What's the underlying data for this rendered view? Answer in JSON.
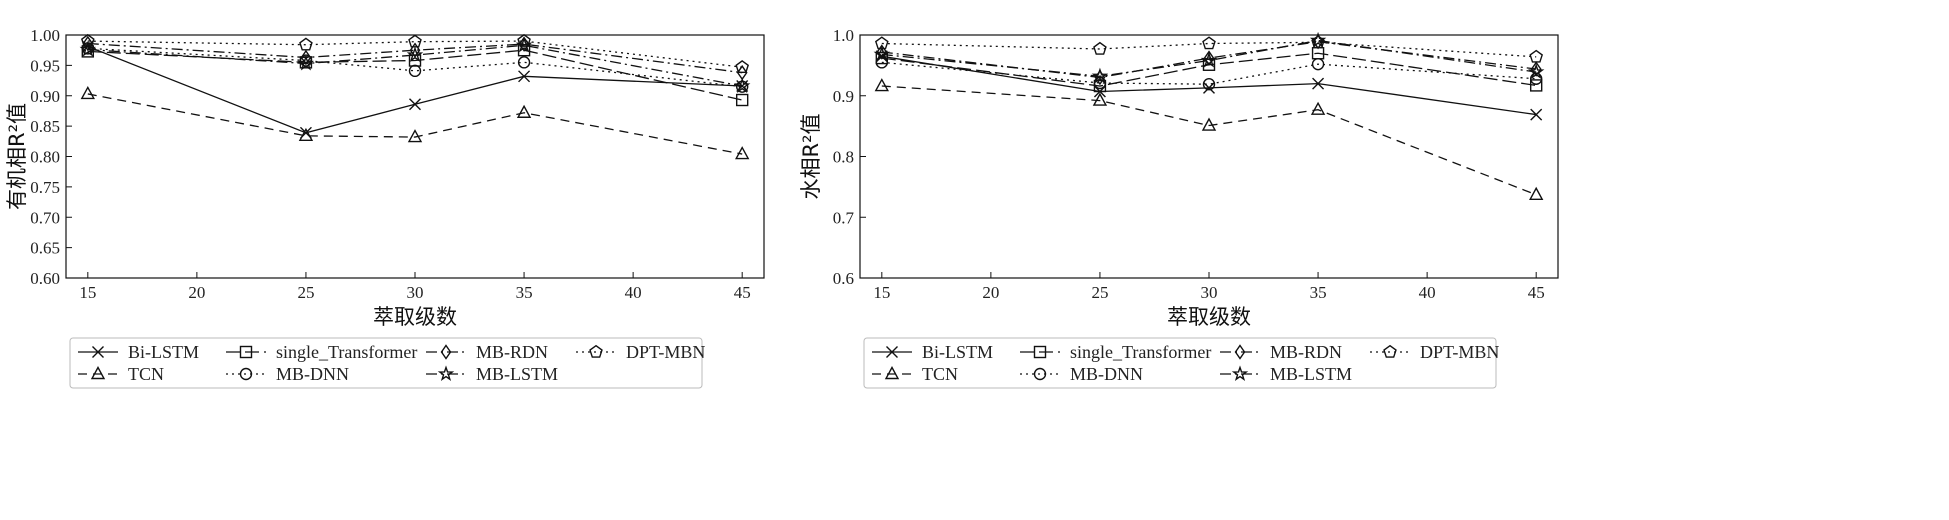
{
  "chart_data": [
    {
      "type": "line",
      "ylabel": "有机相R²值",
      "xlabel": "萃取级数",
      "xlim": [
        14,
        46
      ],
      "ylim": [
        0.6,
        1.0
      ],
      "xticks": [
        15,
        20,
        25,
        30,
        35,
        40,
        45
      ],
      "yticks": [
        "0.60",
        "0.65",
        "0.70",
        "0.75",
        "0.80",
        "0.85",
        "0.90",
        "0.95",
        "1.00"
      ],
      "x": [
        15,
        25,
        30,
        35,
        45
      ],
      "legend": "below",
      "grid": false,
      "series": [
        {
          "name": "Bi-LSTM",
          "values": [
            0.981,
            0.839,
            0.886,
            0.932,
            0.916
          ],
          "marker": "x",
          "dash": "solid"
        },
        {
          "name": "TCN",
          "values": [
            0.903,
            0.834,
            0.832,
            0.872,
            0.804
          ],
          "marker": "triangle",
          "dash": "dashed"
        },
        {
          "name": "single_Transformer",
          "values": [
            0.973,
            0.955,
            0.958,
            0.975,
            0.893
          ],
          "marker": "square",
          "dash": "longdash"
        },
        {
          "name": "MB-DNN",
          "values": [
            0.978,
            0.958,
            0.941,
            0.955,
            0.915
          ],
          "marker": "circle",
          "dash": "dotted"
        },
        {
          "name": "MB-RDN",
          "values": [
            0.986,
            0.963,
            0.975,
            0.985,
            0.938
          ],
          "marker": "diamond",
          "dash": "dashdot"
        },
        {
          "name": "MB-LSTM",
          "values": [
            0.976,
            0.953,
            0.967,
            0.983,
            0.916
          ],
          "marker": "star",
          "dash": "dashdot"
        },
        {
          "name": "DPT-MBN",
          "values": [
            0.99,
            0.984,
            0.989,
            0.99,
            0.947
          ],
          "marker": "pentagon",
          "dash": "dotted"
        }
      ]
    },
    {
      "type": "line",
      "ylabel": "水相R²值",
      "xlabel": "萃取级数",
      "xlim": [
        14,
        46
      ],
      "ylim": [
        0.6,
        1.0
      ],
      "xticks": [
        15,
        20,
        25,
        30,
        35,
        40,
        45
      ],
      "yticks": [
        "0.6",
        "0.7",
        "0.8",
        "0.9",
        "1.0"
      ],
      "x": [
        15,
        25,
        30,
        35,
        45
      ],
      "legend": "below",
      "grid": false,
      "series": [
        {
          "name": "Bi-LSTM",
          "values": [
            0.965,
            0.907,
            0.913,
            0.92,
            0.869
          ],
          "marker": "x",
          "dash": "solid"
        },
        {
          "name": "TCN",
          "values": [
            0.916,
            0.892,
            0.851,
            0.877,
            0.737
          ],
          "marker": "triangle",
          "dash": "dashed"
        },
        {
          "name": "single_Transformer",
          "values": [
            0.962,
            0.916,
            0.951,
            0.97,
            0.917
          ],
          "marker": "square",
          "dash": "longdash"
        },
        {
          "name": "MB-DNN",
          "values": [
            0.955,
            0.921,
            0.919,
            0.952,
            0.928
          ],
          "marker": "circle",
          "dash": "dotted"
        },
        {
          "name": "MB-RDN",
          "values": [
            0.972,
            0.93,
            0.962,
            0.989,
            0.944
          ],
          "marker": "diamond",
          "dash": "dashdot"
        },
        {
          "name": "MB-LSTM",
          "values": [
            0.968,
            0.932,
            0.958,
            0.991,
            0.939
          ],
          "marker": "star",
          "dash": "dashdot"
        },
        {
          "name": "DPT-MBN",
          "values": [
            0.986,
            0.977,
            0.986,
            0.988,
            0.964
          ],
          "marker": "pentagon",
          "dash": "dotted"
        }
      ]
    }
  ]
}
